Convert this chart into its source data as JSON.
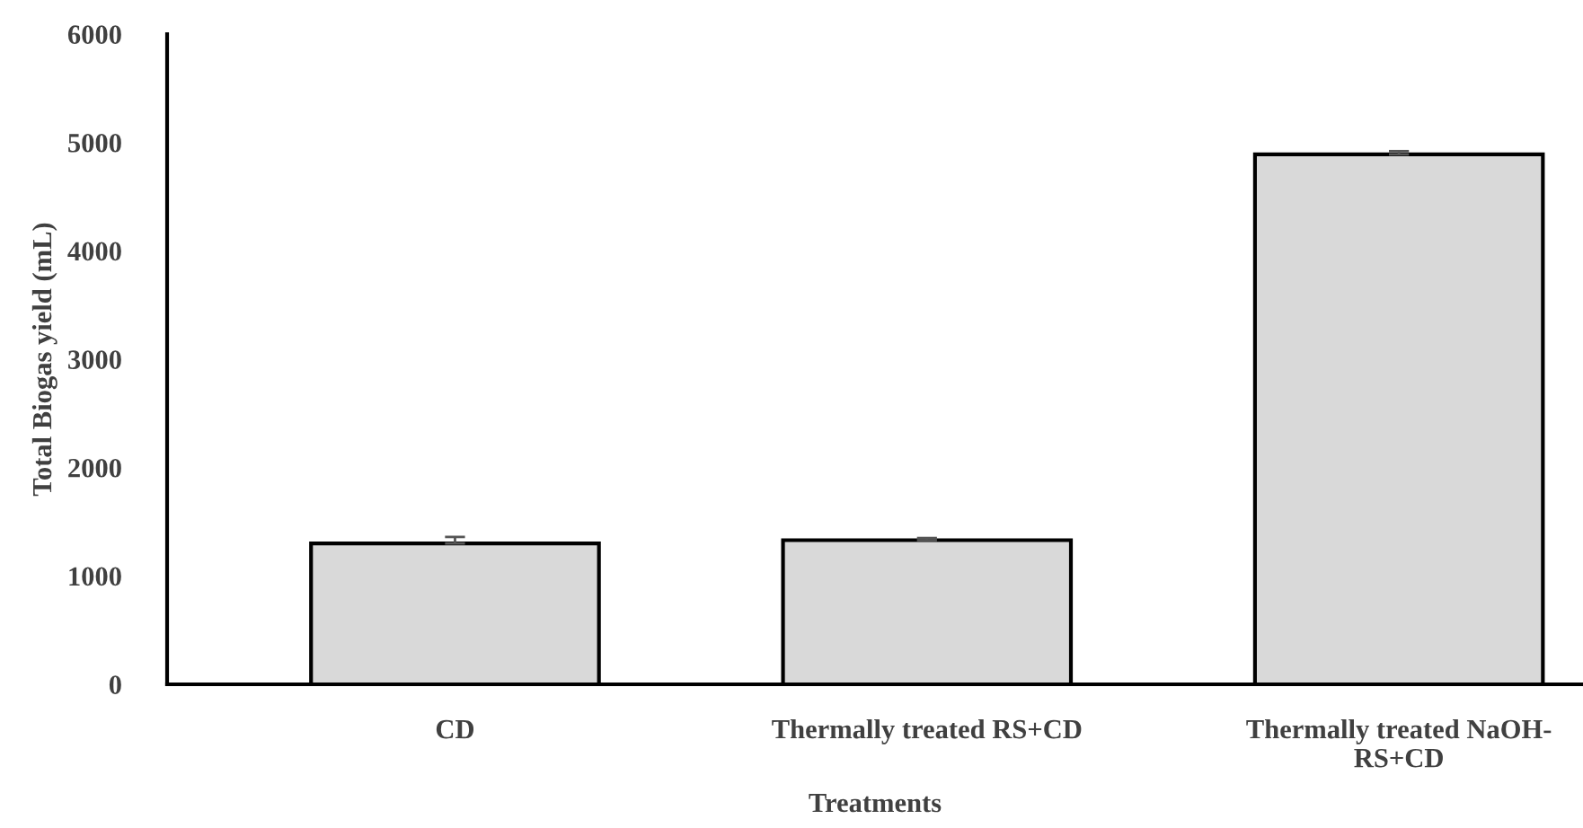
{
  "chart_data": {
    "type": "bar",
    "xlabel": "Treatments",
    "ylabel": "Total Biogas yield (mL)",
    "categories": [
      "CD",
      "Thermally treated RS+CD",
      "Thermally treated NaOH-\nRS+CD"
    ],
    "values": [
      1300,
      1330,
      4890
    ],
    "errors": [
      [
        1300,
        1360
      ],
      [
        1330,
        1350
      ],
      [
        4890,
        4920
      ]
    ],
    "color": "#d9d9d9",
    "ylim": [
      0,
      6000
    ],
    "yticks": [
      0,
      1000,
      2000,
      3000,
      4000,
      5000,
      6000
    ],
    "grid": false,
    "legend": false
  }
}
